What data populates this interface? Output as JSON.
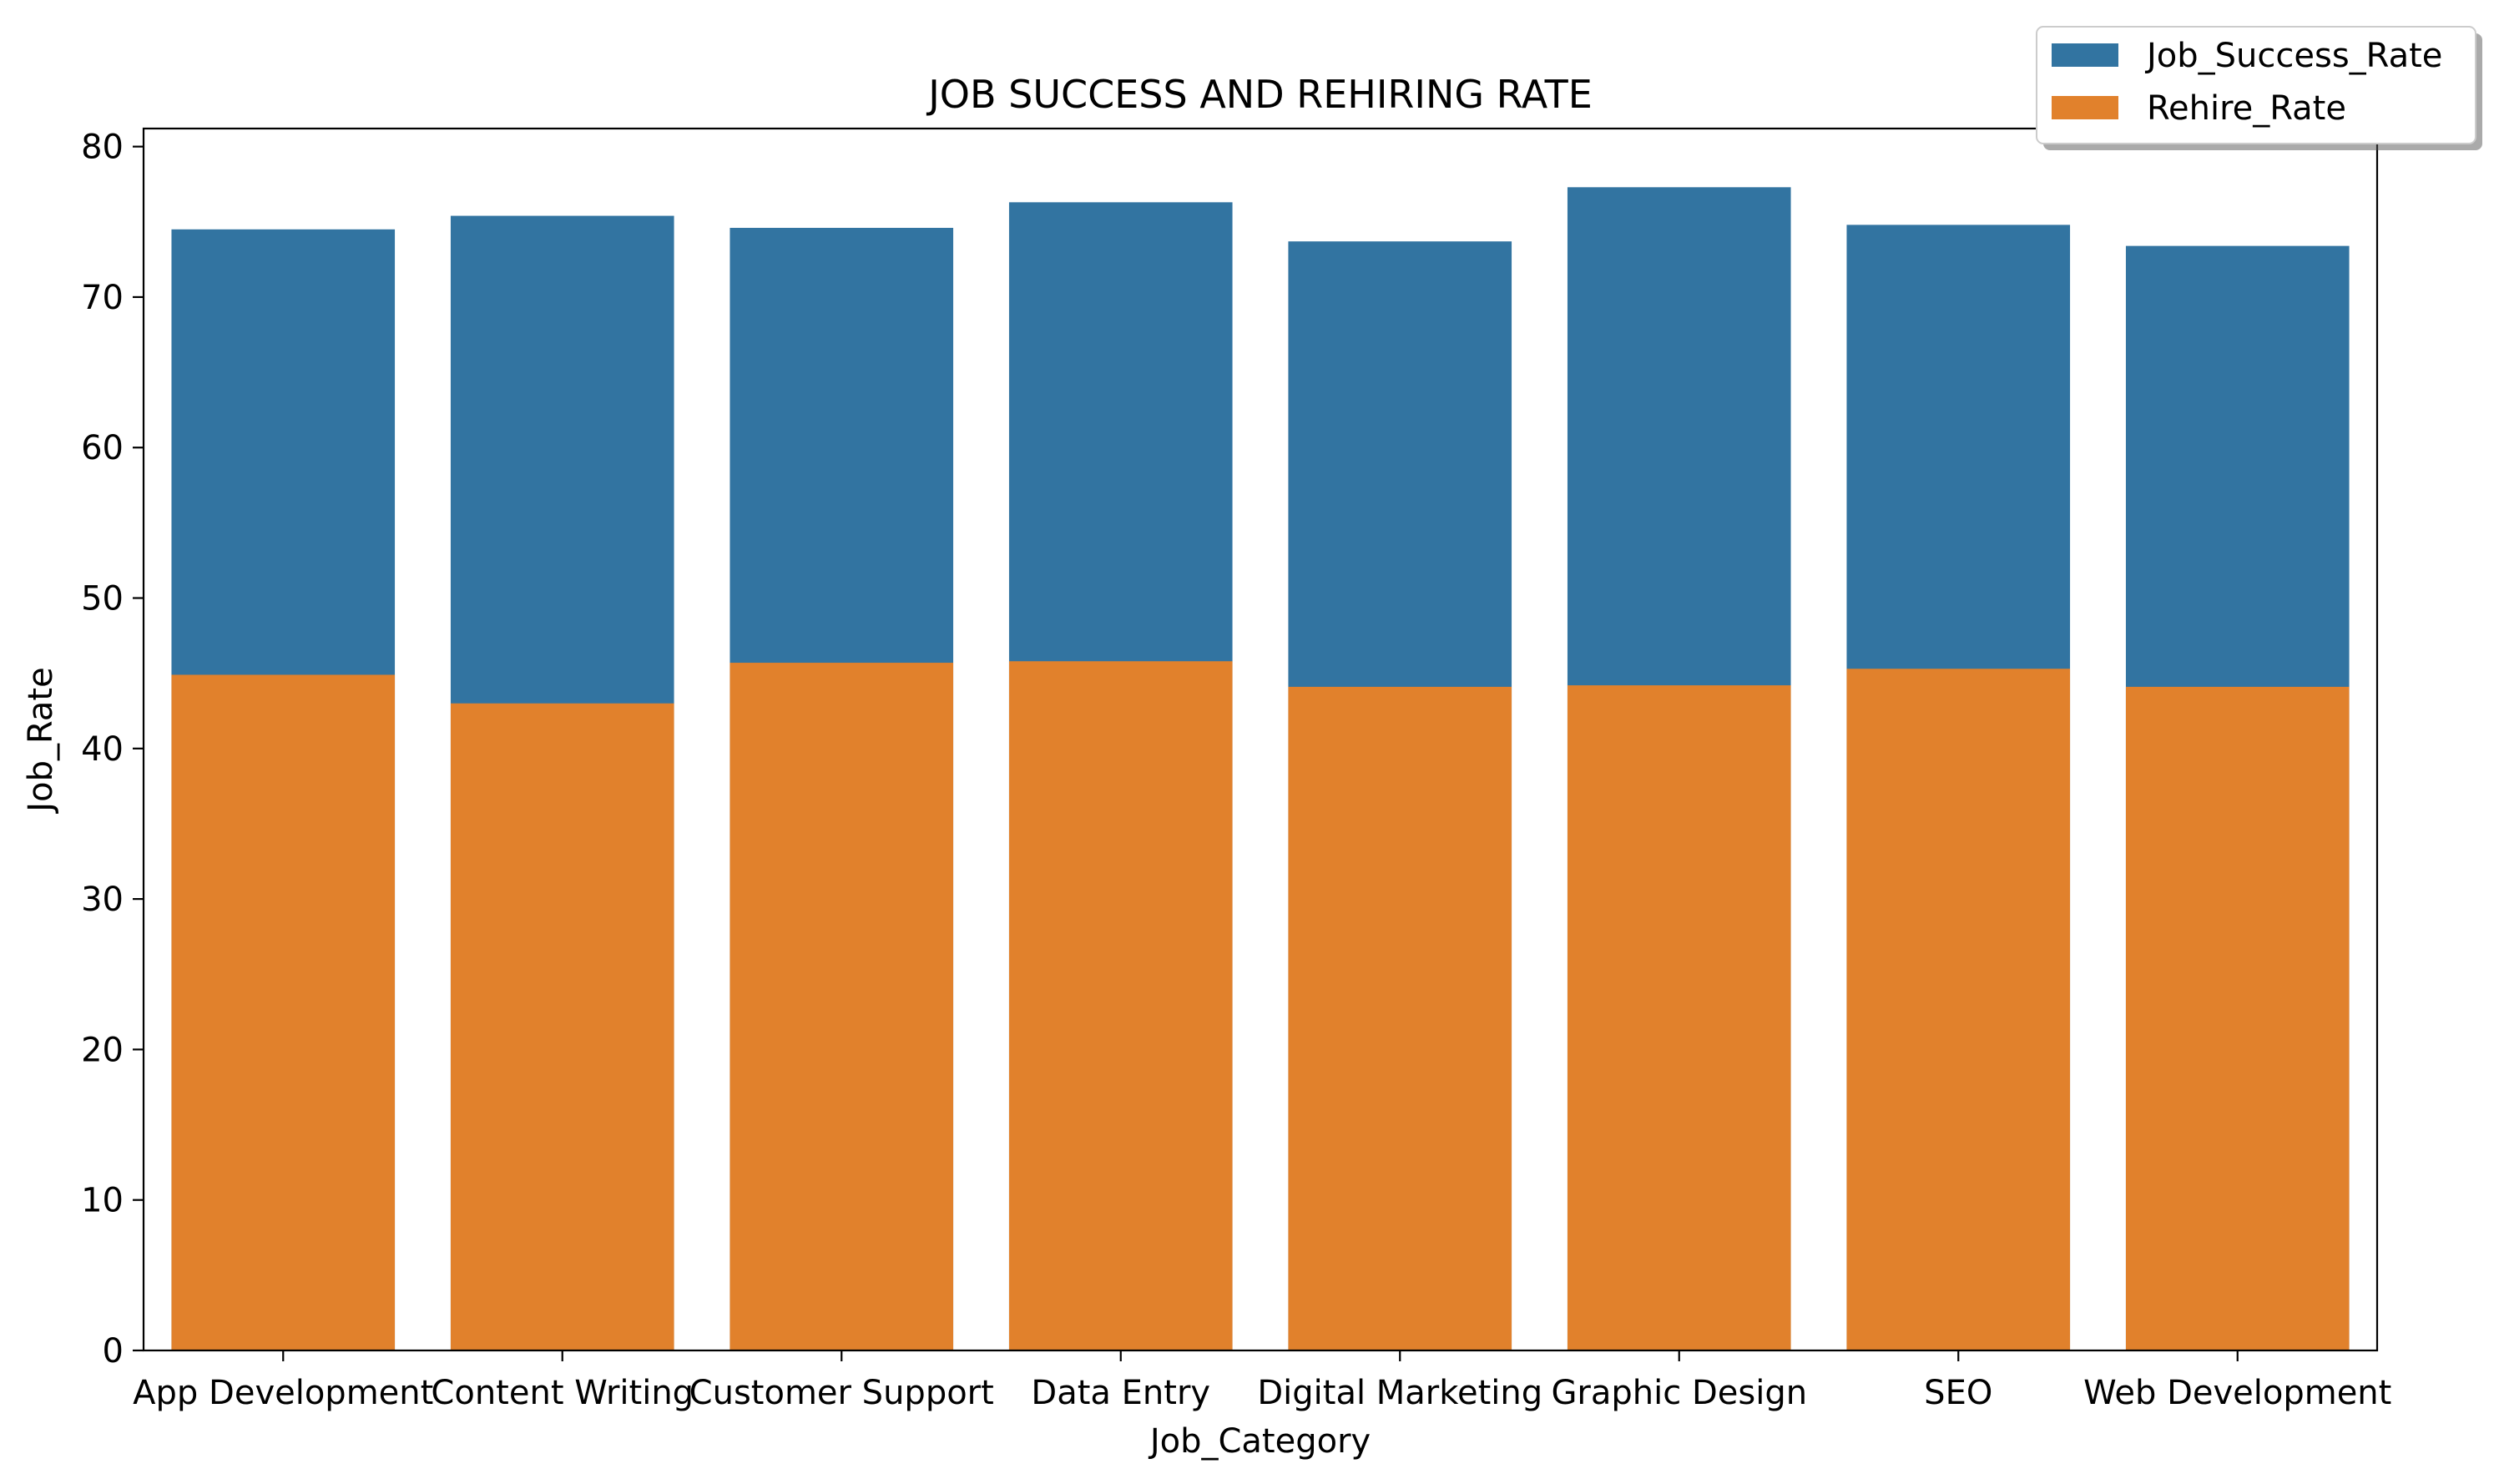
{
  "chart_data": {
    "type": "bar",
    "title": "JOB SUCCESS AND REHIRING RATE",
    "xlabel": "Job_Category",
    "ylabel": "Job_Rate",
    "categories": [
      "App Development",
      "Content Writing",
      "Customer Support",
      "Data Entry",
      "Digital Marketing",
      "Graphic Design",
      "SEO",
      "Web Development"
    ],
    "series": [
      {
        "name": "Job_Success_Rate",
        "color": "#3274a1",
        "values": [
          74.5,
          75.4,
          74.6,
          76.3,
          73.7,
          77.3,
          74.8,
          73.4
        ]
      },
      {
        "name": "Rehire_Rate",
        "color": "#e1812c",
        "values": [
          44.9,
          43.0,
          45.7,
          45.8,
          44.1,
          44.2,
          45.3,
          44.1
        ]
      }
    ],
    "ylim": [
      0,
      81.2
    ],
    "yticks": [
      0,
      10,
      20,
      30,
      40,
      50,
      60,
      70,
      80
    ],
    "grid": false,
    "legend_position": "top-right (outside axes)",
    "layering": "overlapping (Rehire_Rate drawn in front of Job_Success_Rate)"
  }
}
